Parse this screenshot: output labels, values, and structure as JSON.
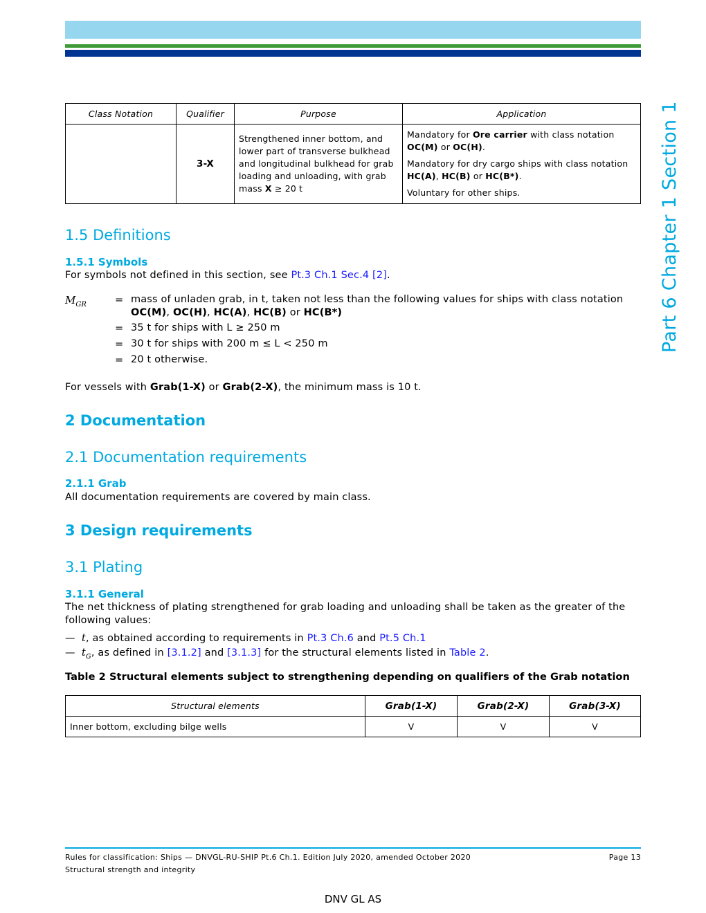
{
  "header": {
    "colors": {
      "light_blue": "#97d6ef",
      "green": "#3d9a35",
      "dark_blue": "#003591",
      "heading": "#00a9e0",
      "link": "#1a1aff"
    }
  },
  "side_title": "Part 6 Chapter 1 Section 1",
  "table1": {
    "headers": [
      "Class Notation",
      "Qualifier",
      "Purpose",
      "Application"
    ],
    "row": {
      "class_notation": "",
      "qualifier": "3-X",
      "purpose": [
        {
          "t": "Strengthened inner bottom, and lower part of transverse bulkhead and longitudinal bulkhead for grab loading and unloading, with grab mass "
        },
        {
          "t": "X",
          "b": true
        },
        {
          "t": " ≥ 20 t"
        }
      ],
      "application": [
        [
          {
            "t": "Mandatory for "
          },
          {
            "t": "Ore carrier",
            "b": true
          },
          {
            "t": " with class notation "
          },
          {
            "t": "OC(M)",
            "b": true
          },
          {
            "t": " or "
          },
          {
            "t": "OC(H)",
            "b": true
          },
          {
            "t": "."
          }
        ],
        [
          {
            "t": "Mandatory for dry cargo ships with class notation "
          },
          {
            "t": "HC(A)",
            "b": true
          },
          {
            "t": ", "
          },
          {
            "t": "HC(B)",
            "b": true
          },
          {
            "t": " or "
          },
          {
            "t": "HC(B*)",
            "b": true
          },
          {
            "t": "."
          }
        ],
        [
          {
            "t": "Voluntary for other ships."
          }
        ]
      ]
    }
  },
  "s15": {
    "title": "1.5 Definitions",
    "sub": "1.5.1 Symbols",
    "intro": [
      {
        "t": "For symbols not defined in this section, see "
      },
      {
        "t": "Pt.3 Ch.1 Sec.4 [2]",
        "l": true
      },
      {
        "t": "."
      }
    ],
    "symbol": "M",
    "symbol_sub": "GR",
    "equals": "=",
    "defs": [
      [
        {
          "t": "mass of unladen grab, in t, taken not less than the following values for ships with class notation "
        },
        {
          "t": "OC(M)",
          "b": true
        },
        {
          "t": ", "
        },
        {
          "t": "OC(H)",
          "b": true
        },
        {
          "t": ", "
        },
        {
          "t": "HC(A)",
          "b": true
        },
        {
          "t": ", "
        },
        {
          "t": "HC(B)",
          "b": true
        },
        {
          "t": " or "
        },
        {
          "t": "HC(B*)",
          "b": true
        }
      ],
      [
        {
          "t": "35 t for ships with L ≥ 250 m"
        }
      ],
      [
        {
          "t": "30 t for ships with 200 m ≤ L < 250 m"
        }
      ],
      [
        {
          "t": "20 t otherwise."
        }
      ]
    ],
    "note": [
      {
        "t": "For vessels with "
      },
      {
        "t": "Grab(1-X)",
        "b": true
      },
      {
        "t": " or "
      },
      {
        "t": "Grab(2-X)",
        "b": true
      },
      {
        "t": ", the minimum mass is 10 t."
      }
    ]
  },
  "s2": {
    "title": "2 Documentation",
    "sub": "2.1 Documentation requirements",
    "subsub": "2.1.1 Grab",
    "text": "All documentation requirements are covered by main class."
  },
  "s3": {
    "title": "3 Design requirements",
    "sub": "3.1 Plating",
    "subsub": "3.1.1 General",
    "text": "The net thickness of plating strengthened for grab loading and unloading shall be taken as the greater of the following values:",
    "bullet": "—",
    "bullets": [
      [
        {
          "t": "t",
          "i": true
        },
        {
          "t": ", as obtained according to requirements in "
        },
        {
          "t": "Pt.3 Ch.6",
          "l": true
        },
        {
          "t": " and "
        },
        {
          "t": "Pt.5 Ch.1",
          "l": true
        }
      ],
      [
        {
          "t": "t",
          "i": true
        },
        {
          "t": "G",
          "sub": true
        },
        {
          "t": ", as defined in "
        },
        {
          "t": "[3.1.2]",
          "l": true
        },
        {
          "t": " and "
        },
        {
          "t": "[3.1.3]",
          "l": true
        },
        {
          "t": " for the structural elements listed in "
        },
        {
          "t": "Table 2",
          "l": true
        },
        {
          "t": "."
        }
      ]
    ],
    "table_caption": "Table 2 Structural elements subject to strengthening depending on qualifiers of the Grab notation",
    "table2": {
      "headers": [
        "Structural elements",
        "Grab(1-X)",
        "Grab(2-X)",
        "Grab(3-X)"
      ],
      "rows": [
        [
          "Inner bottom, excluding bilge wells",
          "V",
          "V",
          "V"
        ]
      ]
    }
  },
  "footer": {
    "line1": "Rules for classification: Ships — DNVGL-RU-SHIP Pt.6 Ch.1. Edition July 2020, amended October 2020",
    "line2": "Structural strength and integrity",
    "page": "Page 13",
    "company": "DNV GL AS"
  }
}
